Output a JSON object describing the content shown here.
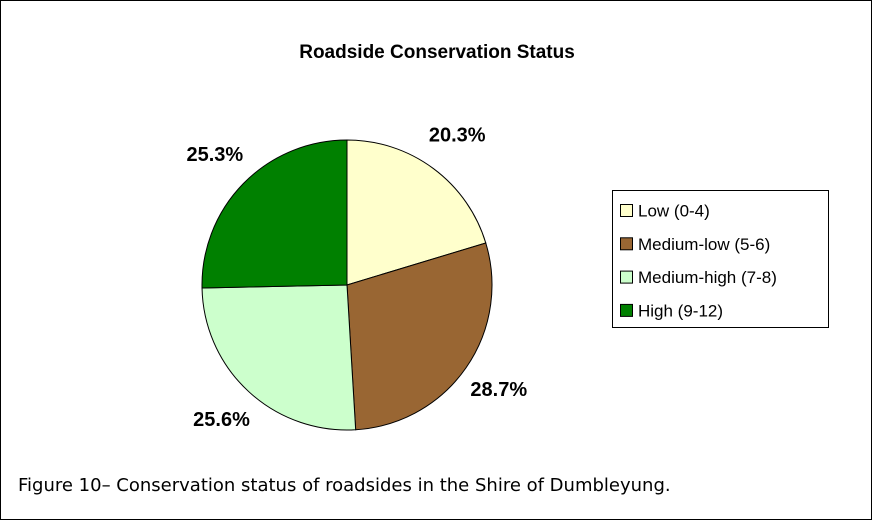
{
  "chart_data": {
    "type": "pie",
    "title": "Roadside Conservation Status",
    "categories": [
      "Low (0-4)",
      "Medium-low (5-6)",
      "Medium-high (7-8)",
      "High (9-12)"
    ],
    "values": [
      20.3,
      28.7,
      25.6,
      25.3
    ],
    "value_labels": [
      "20.3%",
      "28.7%",
      "25.6%",
      "25.3%"
    ],
    "colors": [
      "#ffffcc",
      "#996633",
      "#ccffcc",
      "#008000"
    ],
    "legend": "right"
  },
  "caption": "Figure 10– Conservation status of roadsides in the Shire of Dumbleyung."
}
